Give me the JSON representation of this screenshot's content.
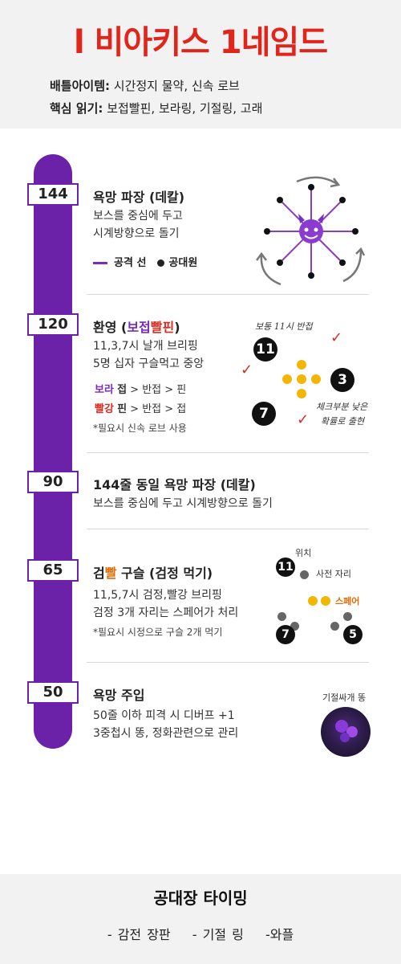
{
  "header": {
    "title": "l 비아키스 1네임드",
    "battle_item_label": "배틀아이템:",
    "battle_item_value": "시간정지 물약, 신속 로브",
    "core_label": "핵심 읽기:",
    "core_value": "보접빨핀, 보라링, 기절링, 고래"
  },
  "sections": [
    {
      "badge": "144",
      "title": "욕망 파장 (데칼)",
      "lines": [
        "보스를 중심에 두고",
        "시계방향으로 돌기"
      ],
      "legend_line": "공격 선",
      "legend_dot": "공대원"
    },
    {
      "badge": "120",
      "title_prefix": "환영 (",
      "title_hl1": "보접",
      "title_hl2": "빨핀",
      "title_suffix": ")",
      "lines": [
        "11,3,7시 날개 브리핑",
        "5명 십자 구슬먹고 중앙"
      ],
      "prio1_color": "보라",
      "prio1_key": "접",
      "prio1_rest": "> 반접 > 핀",
      "prio2_color": "빨강",
      "prio2_key": "핀",
      "prio2_rest": "> 반접 > 접",
      "note": "*필요시 신속 로브 사용",
      "hand_top": "보통 11시 반접",
      "hand_right1": "체크부분 낮은",
      "hand_right2": "확률로 출현",
      "positions": [
        "11",
        "3",
        "7"
      ]
    },
    {
      "badge": "90",
      "title": "144줄 동일 욕망 파장 (데칼)",
      "lines": [
        "보스를 중심에 두고 시계방향으로 돌기"
      ]
    },
    {
      "badge": "65",
      "title_prefix": "검",
      "title_hl": "빨",
      "title_suffix": " 구슬 (검정 먹기)",
      "lines": [
        "11,5,7시 검정,빨강 브리핑",
        "검정 3개 자리는 스페어가 처리"
      ],
      "note": "*필요시 시정으로 구슬 2개 먹기",
      "lbl_pos": "위치",
      "lbl_fixed": "사전 자리",
      "lbl_spare": "스페어",
      "positions": [
        "11",
        "7",
        "5"
      ]
    },
    {
      "badge": "50",
      "title": "욕망 주입",
      "lines": [
        "50줄 이하 피격 시 디버프 +1",
        "3중첩시 똥, 정화관련으로 관리"
      ],
      "img_label": "기절싸개 똥"
    }
  ],
  "footer": {
    "title": "공대장 타이밍",
    "items": [
      "- 감전 장판",
      "- 기절 링",
      "-와플"
    ]
  },
  "colors": {
    "title_red": "#e1251b",
    "purple": "#6b21a8",
    "gold": "#f2b705",
    "red_check": "#d92d20",
    "spare_orange": "#e26a00"
  },
  "icons": {
    "boss": "purple-devil-emoji",
    "arrows": "clockwise-arrows",
    "check": "red-check-mark"
  }
}
